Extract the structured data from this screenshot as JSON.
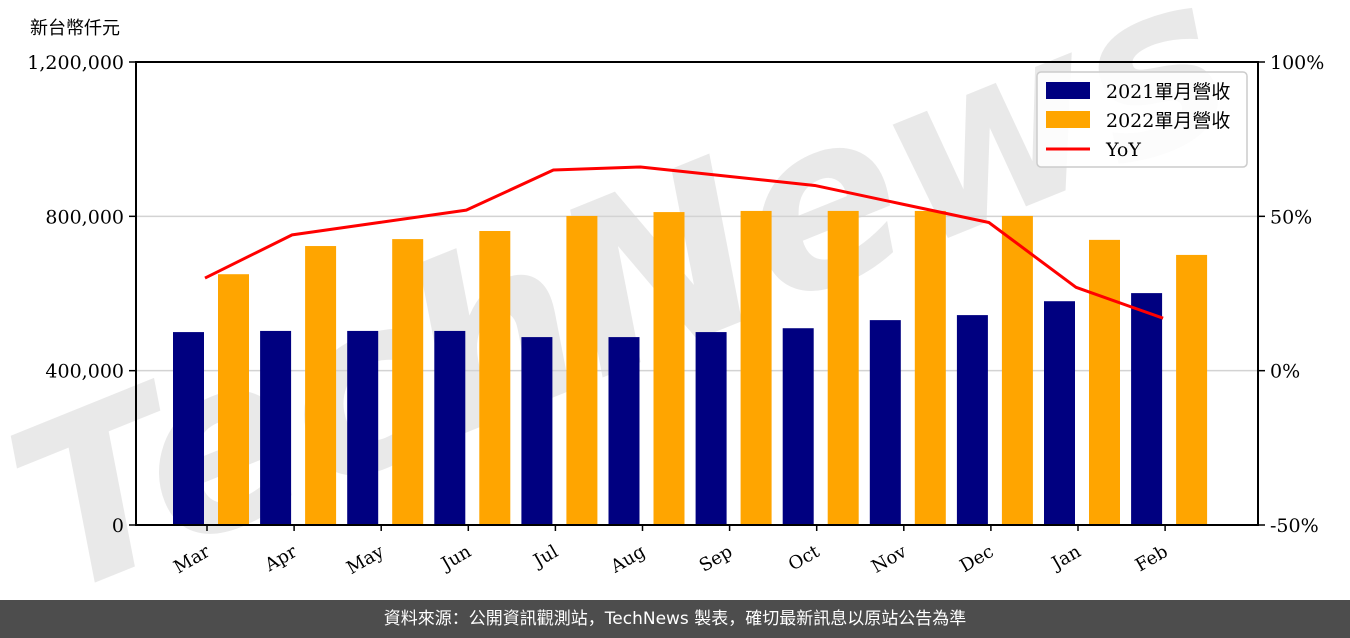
{
  "unit_label": "新台幣仟元",
  "footer": "資料來源：公開資訊觀測站，TechNews 製表，確切最新訊息以原站公告為準",
  "watermark": "TechNews",
  "colors": {
    "bar2021": "#000080",
    "bar2022": "#FFA500",
    "yoy": "#FF0000",
    "grid": "#d3d3d3",
    "footer_bg": "#4d4d4d"
  },
  "chart_data": {
    "type": "bar",
    "title": "",
    "xlabel": "",
    "ylabel": "新台幣仟元",
    "ylim": [
      0,
      1200000
    ],
    "y2lim": [
      -50,
      100
    ],
    "yticks": [
      "0",
      "400,000",
      "800,000",
      "1,200,000"
    ],
    "y2ticks": [
      "-50%",
      "0%",
      "50%",
      "100%"
    ],
    "grid": "horizontal",
    "legend_position": "upper right",
    "categories": [
      "Mar",
      "Apr",
      "May",
      "Jun",
      "Jul",
      "Aug",
      "Sep",
      "Oct",
      "Nov",
      "Dec",
      "Jan",
      "Feb"
    ],
    "series": [
      {
        "name": "2021單月營收",
        "type": "bar",
        "axis": "left",
        "values": [
          500000,
          503000,
          503000,
          503000,
          487000,
          487000,
          500000,
          510000,
          531000,
          544000,
          580000,
          601000
        ]
      },
      {
        "name": "2022單月營收",
        "type": "bar",
        "axis": "left",
        "values": [
          650000,
          723000,
          741000,
          762000,
          801000,
          811000,
          814000,
          814000,
          814000,
          801000,
          739000,
          700000
        ]
      },
      {
        "name": "YoY",
        "type": "line",
        "axis": "right",
        "unit": "%",
        "values": [
          30,
          44,
          48,
          52,
          65,
          66,
          63,
          60,
          54,
          48,
          27,
          17
        ]
      }
    ]
  }
}
